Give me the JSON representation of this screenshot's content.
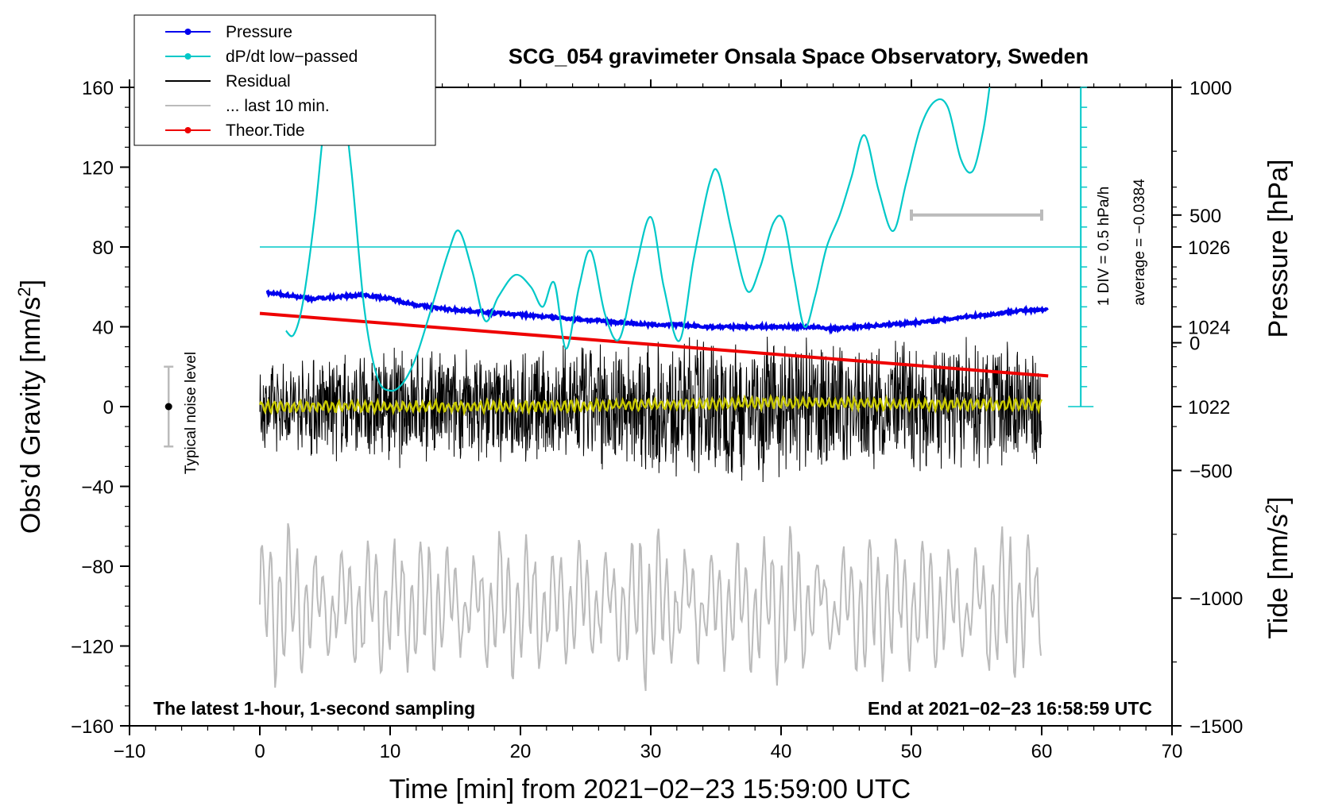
{
  "chart_data": {
    "type": "line",
    "title": "SCG_054 gravimeter Onsala Space Observatory, Sweden",
    "xlabel": "Time [min] from 2021−02−23 15:59:00 UTC",
    "ylabel_left": "Obs’d Gravity [nm/s²]",
    "ylabel_left_prefix": "Obs’d Gravity [nm/s",
    "ylabel_right_pressure": "Pressure [hPa]",
    "ylabel_right_tide_prefix": "Tide [nm/s",
    "unit_sup": "2",
    "unit_close": "]",
    "xlim": [
      -10,
      70
    ],
    "ylim": [
      -160,
      160
    ],
    "pressure_lim": [
      1014,
      1030
    ],
    "tide_lim": [
      -1500,
      1000
    ],
    "x_ticks": [
      -10,
      0,
      10,
      20,
      30,
      40,
      50,
      60,
      70
    ],
    "x_tick_labels": [
      "−10",
      "0",
      "10",
      "20",
      "30",
      "40",
      "50",
      "60",
      "70"
    ],
    "y_ticks": [
      -160,
      -120,
      -80,
      -40,
      0,
      40,
      80,
      120,
      160
    ],
    "y_tick_labels": [
      "−160",
      "−120",
      "−80",
      "−40",
      "0",
      "40",
      "80",
      "120",
      "160"
    ],
    "pressure_ticks": [
      1022,
      1024,
      1026
    ],
    "pressure_tick_labels": [
      "1022",
      "1024",
      "1026"
    ],
    "tide_ticks": [
      -1500,
      -1000,
      -500,
      0,
      500,
      1000
    ],
    "tide_tick_labels": [
      "−1500",
      "−1000",
      "−500",
      "0",
      "500",
      "1000"
    ],
    "legend": [
      {
        "label": "Pressure",
        "color": "#0000ee",
        "marker": true
      },
      {
        "label": "dP/dt low−passed",
        "color": "#00c8c8",
        "marker": true
      },
      {
        "label": "Residual",
        "color": "#000000",
        "marker": false
      },
      {
        "label": "... last 10 min.",
        "color": "#bbbbbb",
        "marker": false
      },
      {
        "label": "Theor.Tide",
        "color": "#ee0000",
        "marker": true
      }
    ],
    "annotations": {
      "bottom_left": "The latest 1-hour, 1-second sampling",
      "bottom_right": "End at 2021−02−23 16:58:59 UTC",
      "noise_label": "Typical noise level",
      "div_label": "1 DIV = 0.5 hPa/h",
      "average_label": "average = −0.0384"
    },
    "noise_bar": {
      "x": -7,
      "center": 0,
      "half_range": 20
    },
    "last10_bar": {
      "x_start": 50,
      "x_end": 60,
      "tide": 500
    },
    "dpdt_scale": {
      "x": 63,
      "min": 0,
      "max": 80,
      "divisions": 16
    },
    "zero_line_gravity": 80,
    "series": [
      {
        "name": "Pressure",
        "axis": "pressure",
        "color": "#0000ee",
        "x": [
          0.5,
          2,
          4,
          6,
          8,
          10,
          12,
          14,
          16,
          18,
          20,
          22,
          24,
          26,
          28,
          30,
          32,
          34,
          36,
          38,
          40,
          42,
          44,
          46,
          48,
          50,
          52,
          54,
          56,
          58,
          60.5
        ],
        "values": [
          1024.85,
          1024.8,
          1024.7,
          1024.75,
          1024.8,
          1024.7,
          1024.55,
          1024.45,
          1024.4,
          1024.35,
          1024.3,
          1024.25,
          1024.2,
          1024.15,
          1024.1,
          1024.05,
          1024.05,
          1024.0,
          1024.0,
          1024.0,
          1024.0,
          1024.0,
          1023.95,
          1024.0,
          1024.05,
          1024.1,
          1024.15,
          1024.25,
          1024.3,
          1024.4,
          1024.42
        ]
      },
      {
        "name": "dP/dt low-passed",
        "axis": "gravity",
        "color": "#00c8c8",
        "x": [
          2,
          2.6,
          3.3,
          4.2,
          5.1,
          6.0,
          7.0,
          8.0,
          9.0,
          10.0,
          11.0,
          12.0,
          13.2,
          14.5,
          15.3,
          16.3,
          17.3,
          18.3,
          19.6,
          20.8,
          21.7,
          22.6,
          23.5,
          24.5,
          25.4,
          26.5,
          27.6,
          28.8,
          30.0,
          31.0,
          32.2,
          33.3,
          34.5,
          35.2,
          36.2,
          37.4,
          38.4,
          39.4,
          40.2,
          41.0,
          41.8,
          42.6,
          43.5,
          44.5,
          45.4,
          46.4,
          47.5,
          48.6,
          49.6,
          50.7,
          51.8,
          52.8,
          53.8,
          54.7,
          55.5,
          56.0
        ],
        "values": [
          38,
          36,
          52,
          95,
          150,
          170,
          120,
          50,
          15,
          8,
          12,
          25,
          50,
          78,
          88,
          68,
          43,
          55,
          66,
          60,
          50,
          62,
          29,
          60,
          78,
          46,
          34,
          68,
          95,
          60,
          33,
          74,
          112,
          117,
          88,
          58,
          70,
          92,
          93,
          65,
          40,
          55,
          80,
          96,
          115,
          136,
          108,
          88,
          112,
          140,
          153,
          150,
          124,
          118,
          138,
          160
        ]
      },
      {
        "name": "Residual",
        "axis": "gravity",
        "color": "#000000",
        "x": [
          0,
          60
        ],
        "envelope_x": [
          0,
          5,
          10,
          15,
          20,
          25,
          30,
          35,
          40,
          45,
          50,
          55,
          60
        ],
        "envelope_amp": [
          22,
          28,
          32,
          30,
          30,
          36,
          34,
          40,
          38,
          34,
          34,
          36,
          30
        ],
        "values": [
          0,
          0
        ],
        "note": "1-second sampled residual; dense oscillation around zero"
      },
      {
        "name": "Residual low-passed",
        "axis": "gravity",
        "color": "#c8c800",
        "x": [
          0,
          10,
          20,
          30,
          40,
          50,
          60
        ],
        "values": [
          0,
          0,
          0,
          1,
          2,
          1,
          1
        ]
      },
      {
        "name": "... last 10 min.",
        "axis": "gravity",
        "color": "#bbbbbb",
        "x": [
          0,
          60
        ],
        "center": -100,
        "amp": 30,
        "values": [
          -110,
          -110
        ],
        "note": "last 10 minutes of residual, offset below"
      },
      {
        "name": "Theor.Tide",
        "axis": "tide",
        "color": "#ee0000",
        "x": [
          0,
          60.5
        ],
        "values": [
          115,
          -130
        ]
      }
    ]
  }
}
